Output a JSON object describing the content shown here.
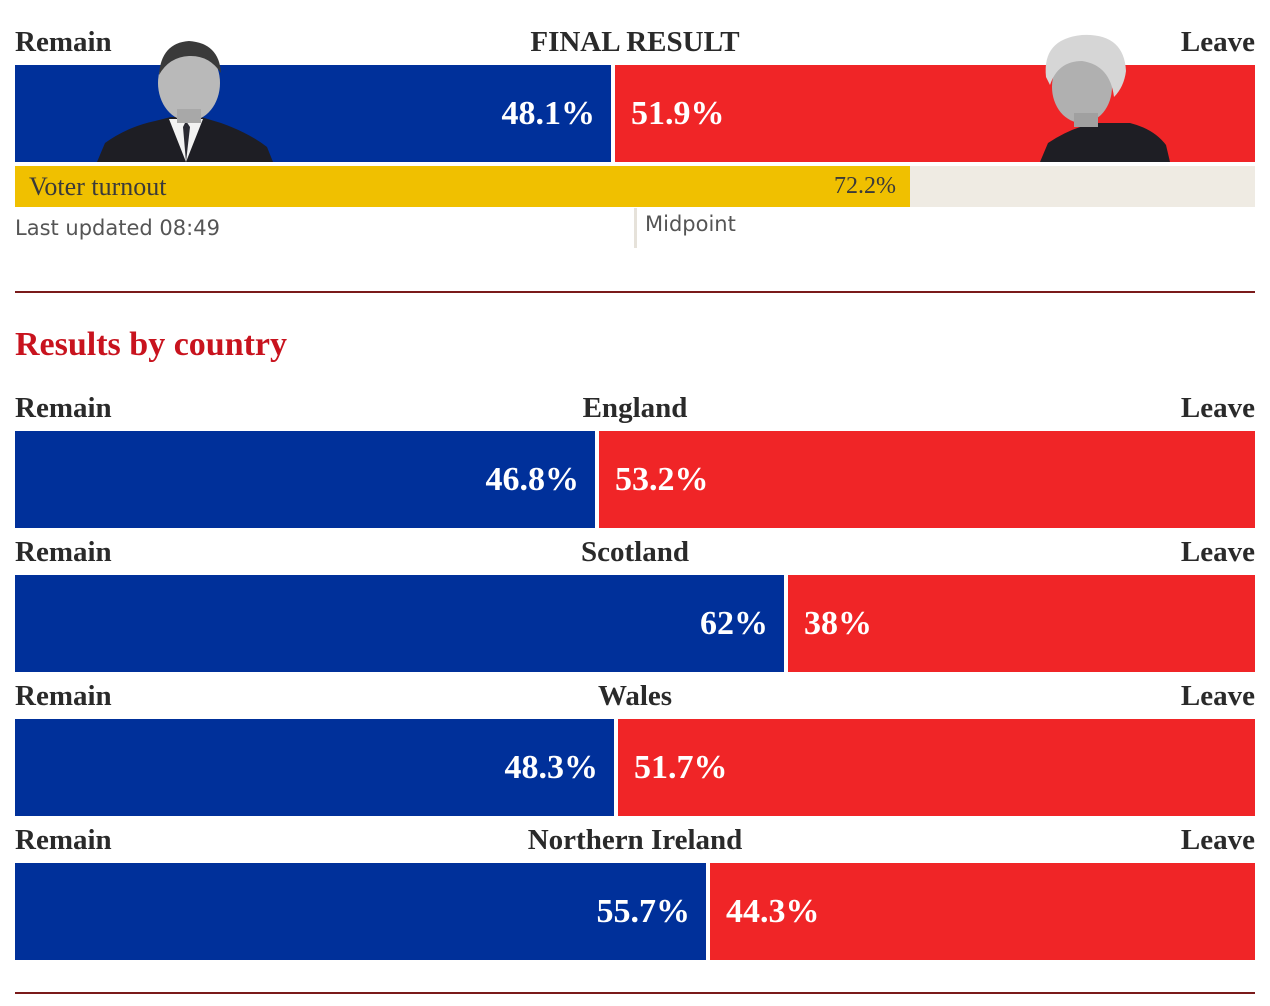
{
  "colors": {
    "remain": "#00309a",
    "leave": "#f02527",
    "turnout": "#f0c000",
    "turnout_track": "#efebe3",
    "section_title": "#c8131e",
    "rule": "#7a1a1a"
  },
  "final": {
    "title": "FINAL RESULT",
    "remain_label": "Remain",
    "leave_label": "Leave",
    "remain_value": "48.1%",
    "leave_value": "51.9%",
    "remain_share": 48.1
  },
  "turnout": {
    "label": "Voter turnout",
    "value": "72.2%",
    "share": 72.2
  },
  "last_updated": "Last updated 08:49",
  "midpoint_label": "Midpoint",
  "section_title": "Results by country",
  "chart_data": [
    {
      "type": "bar",
      "title": "FINAL RESULT",
      "categories": [
        "Remain",
        "Leave"
      ],
      "values": [
        48.1,
        51.9
      ]
    },
    {
      "type": "bar",
      "title": "England",
      "categories": [
        "Remain",
        "Leave"
      ],
      "values": [
        46.8,
        53.2
      ]
    },
    {
      "type": "bar",
      "title": "Scotland",
      "categories": [
        "Remain",
        "Leave"
      ],
      "values": [
        62,
        38
      ]
    },
    {
      "type": "bar",
      "title": "Wales",
      "categories": [
        "Remain",
        "Leave"
      ],
      "values": [
        48.3,
        51.7
      ]
    },
    {
      "type": "bar",
      "title": "Northern Ireland",
      "categories": [
        "Remain",
        "Leave"
      ],
      "values": [
        55.7,
        44.3
      ]
    }
  ],
  "countries": [
    {
      "name": "England",
      "remain_label": "Remain",
      "leave_label": "Leave",
      "remain_value": "46.8%",
      "leave_value": "53.2%",
      "remain_share": 46.8
    },
    {
      "name": "Scotland",
      "remain_label": "Remain",
      "leave_label": "Leave",
      "remain_value": "62%",
      "leave_value": "38%",
      "remain_share": 62
    },
    {
      "name": "Wales",
      "remain_label": "Remain",
      "leave_label": "Leave",
      "remain_value": "48.3%",
      "leave_value": "51.7%",
      "remain_share": 48.3
    },
    {
      "name": "Northern Ireland",
      "remain_label": "Remain",
      "leave_label": "Leave",
      "remain_value": "55.7%",
      "leave_value": "44.3%",
      "remain_share": 55.7
    }
  ]
}
